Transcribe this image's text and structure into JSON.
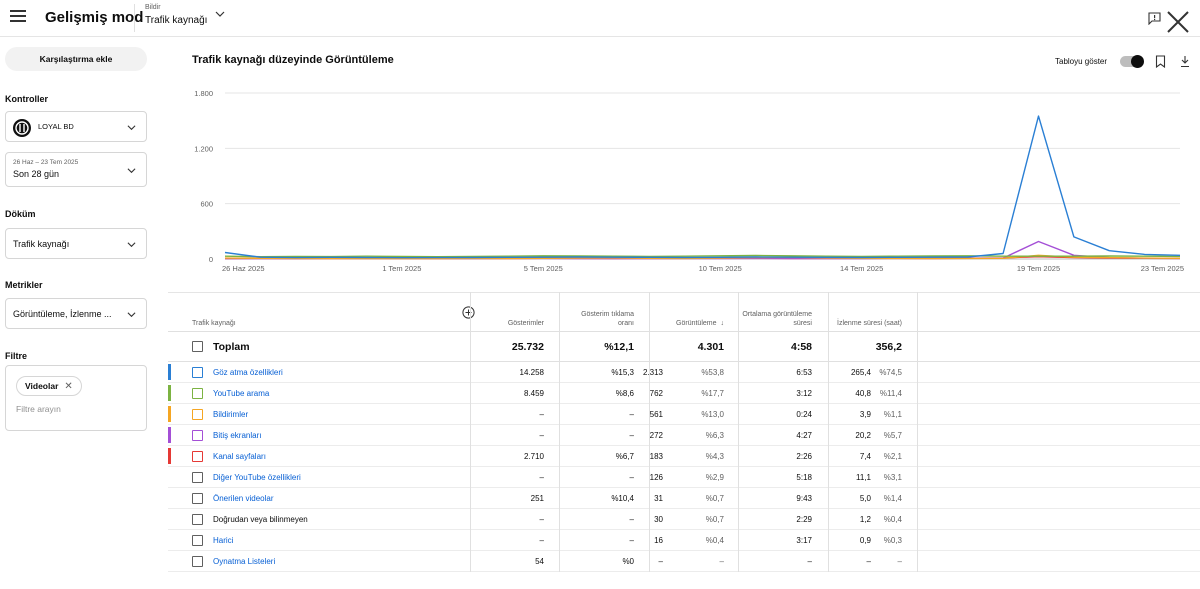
{
  "header": {
    "title": "Gelişmiş mod",
    "report_label": "Bildir",
    "report_value": "Trafik kaynağı"
  },
  "sidebar": {
    "compare_button": "Karşılaştırma ekle",
    "controls_label": "Kontroller",
    "channel_name": "LOYAL BD",
    "date_range": "26 Haz – 23 Tem 2025",
    "date_preset": "Son 28 gün",
    "breakdown_label": "Döküm",
    "breakdown_value": "Trafik kaynağı",
    "metrics_label": "Metrikler",
    "metrics_value": "Görüntüleme, İzlenme ...",
    "filter_label": "Filtre",
    "filter_chip": "Videolar",
    "filter_placeholder": "Filtre arayın"
  },
  "main": {
    "chart_title": "Trafik kaynağı düzeyinde Görüntüleme",
    "table_toggle_label": "Tabloyu göster"
  },
  "chart_data": {
    "type": "line",
    "title": "Trafik kaynağı düzeyinde Görüntüleme",
    "ylim": [
      0,
      1800
    ],
    "yticks": [
      0,
      600,
      1200,
      1800
    ],
    "ytick_labels": [
      "0",
      "600",
      "1.200",
      "1.800"
    ],
    "x_dates": [
      "26 Haz",
      "27 Haz",
      "28 Haz",
      "29 Haz",
      "30 Haz",
      "1 Tem",
      "2 Tem",
      "3 Tem",
      "4 Tem",
      "5 Tem",
      "6 Tem",
      "7 Tem",
      "8 Tem",
      "9 Tem",
      "10 Tem",
      "11 Tem",
      "12 Tem",
      "13 Tem",
      "14 Tem",
      "15 Tem",
      "16 Tem",
      "17 Tem",
      "18 Tem",
      "19 Tem",
      "20 Tem",
      "21 Tem",
      "22 Tem",
      "23 Tem"
    ],
    "xtick_labels": [
      "26 Haz 2025",
      "1 Tem 2025",
      "5 Tem 2025",
      "10 Tem 2025",
      "14 Tem 2025",
      "19 Tem 2025",
      "23 Tem 2025"
    ],
    "xtick_index": [
      0,
      5,
      9,
      14,
      18,
      23,
      27
    ],
    "grid": true,
    "series": [
      {
        "name": "Göz atma özellikleri",
        "color": "#2a7fd4",
        "values": [
          70,
          20,
          15,
          18,
          16,
          14,
          15,
          16,
          18,
          20,
          22,
          20,
          18,
          16,
          18,
          22,
          20,
          18,
          16,
          18,
          20,
          22,
          60,
          1550,
          240,
          90,
          50,
          40
        ]
      },
      {
        "name": "YouTube arama",
        "color": "#7cb342",
        "values": [
          30,
          25,
          28,
          26,
          30,
          27,
          25,
          28,
          30,
          35,
          32,
          30,
          28,
          30,
          35,
          38,
          35,
          30,
          28,
          30,
          32,
          35,
          30,
          30,
          30,
          32,
          30,
          28
        ]
      },
      {
        "name": "Bildirimler",
        "color": "#f5a623",
        "values": [
          10,
          8,
          6,
          5,
          5,
          4,
          5,
          6,
          5,
          8,
          10,
          12,
          8,
          6,
          10,
          15,
          18,
          12,
          8,
          6,
          5,
          6,
          8,
          40,
          20,
          15,
          10,
          8
        ]
      },
      {
        "name": "Bitiş ekranları",
        "color": "#a44fd6",
        "values": [
          5,
          4,
          4,
          5,
          4,
          4,
          5,
          4,
          5,
          6,
          5,
          4,
          5,
          6,
          5,
          6,
          5,
          4,
          5,
          6,
          5,
          8,
          10,
          190,
          40,
          15,
          8,
          6
        ]
      },
      {
        "name": "Kanal sayfaları",
        "color": "#e53935",
        "values": [
          5,
          6,
          5,
          6,
          7,
          6,
          5,
          6,
          7,
          8,
          6,
          5,
          6,
          7,
          8,
          9,
          7,
          6,
          7,
          8,
          7,
          9,
          12,
          25,
          15,
          10,
          8,
          7
        ]
      }
    ]
  },
  "table": {
    "columns": {
      "source": "Trafik kaynağı",
      "impressions": "Gösterimler",
      "ctr": "Gösterim tıklama oranı",
      "views": "Görüntüleme",
      "avd": "Ortalama görüntüleme süresi",
      "watch": "İzlenme süresi (saat)"
    },
    "total": {
      "label": "Toplam",
      "impressions": "25.732",
      "ctr": "%12,1",
      "views": "4.301",
      "avd": "4:58",
      "watch": "356,2"
    },
    "rows": [
      {
        "label": "Göz atma özellikleri",
        "link": true,
        "color": "#2a7fd4",
        "impressions": "14.258",
        "ctr": "%15,3",
        "views": "2.313",
        "views_pct": "%53,8",
        "avd": "6:53",
        "watch": "265,4",
        "watch_pct": "%74,5"
      },
      {
        "label": "YouTube arama",
        "link": true,
        "color": "#7cb342",
        "impressions": "8.459",
        "ctr": "%8,6",
        "views": "762",
        "views_pct": "%17,7",
        "avd": "3:12",
        "watch": "40,8",
        "watch_pct": "%11,4"
      },
      {
        "label": "Bildirimler",
        "link": true,
        "color": "#f5a623",
        "impressions": "–",
        "ctr": "–",
        "views": "561",
        "views_pct": "%13,0",
        "avd": "0:24",
        "watch": "3,9",
        "watch_pct": "%1,1"
      },
      {
        "label": "Bitiş ekranları",
        "link": true,
        "color": "#a44fd6",
        "impressions": "–",
        "ctr": "–",
        "views": "272",
        "views_pct": "%6,3",
        "avd": "4:27",
        "watch": "20,2",
        "watch_pct": "%5,7"
      },
      {
        "label": "Kanal sayfaları",
        "link": true,
        "color": "#e53935",
        "impressions": "2.710",
        "ctr": "%6,7",
        "views": "183",
        "views_pct": "%4,3",
        "avd": "2:26",
        "watch": "7,4",
        "watch_pct": "%2,1"
      },
      {
        "label": "Diğer YouTube özellikleri",
        "link": true,
        "color": "",
        "impressions": "–",
        "ctr": "–",
        "views": "126",
        "views_pct": "%2,9",
        "avd": "5:18",
        "watch": "11,1",
        "watch_pct": "%3,1"
      },
      {
        "label": "Önerilen videolar",
        "link": true,
        "color": "",
        "impressions": "251",
        "ctr": "%10,4",
        "views": "31",
        "views_pct": "%0,7",
        "avd": "9:43",
        "watch": "5,0",
        "watch_pct": "%1,4"
      },
      {
        "label": "Doğrudan veya bilinmeyen",
        "link": false,
        "color": "",
        "impressions": "–",
        "ctr": "–",
        "views": "30",
        "views_pct": "%0,7",
        "avd": "2:29",
        "watch": "1,2",
        "watch_pct": "%0,4"
      },
      {
        "label": "Harici",
        "link": true,
        "color": "",
        "impressions": "–",
        "ctr": "–",
        "views": "16",
        "views_pct": "%0,4",
        "avd": "3:17",
        "watch": "0,9",
        "watch_pct": "%0,3"
      },
      {
        "label": "Oynatma Listeleri",
        "link": true,
        "color": "",
        "impressions": "54",
        "ctr": "%0",
        "views": "–",
        "views_pct": "–",
        "avd": "–",
        "watch": "–",
        "watch_pct": "–"
      }
    ]
  }
}
